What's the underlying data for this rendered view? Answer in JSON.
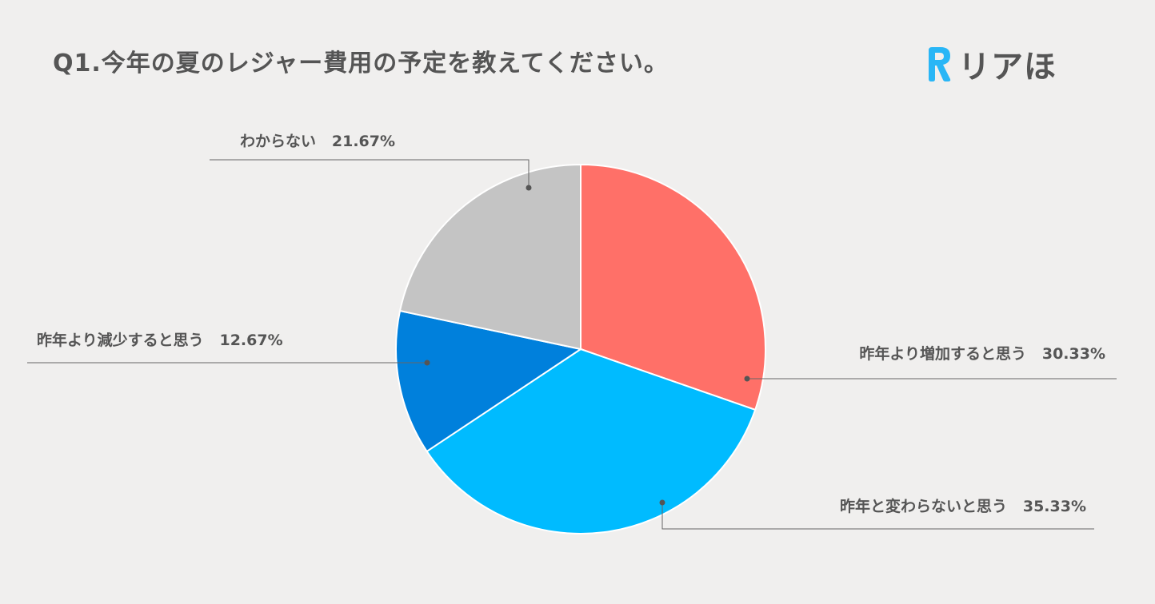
{
  "header": {
    "title": "Q1.今年の夏のレジャー費用の予定を教えてください。",
    "logo_text": "リアほ",
    "logo_mark_letter": "R",
    "logo_mark_color": "#29b6f6"
  },
  "chart_data": {
    "type": "pie",
    "title": "Q1.今年の夏のレジャー費用の予定を教えてください。",
    "slices": [
      {
        "label": "昨年より増加すると思う",
        "value": 30.33,
        "display": "30.33%",
        "color": "#ff7068"
      },
      {
        "label": "昨年と変わらないと思う",
        "value": 35.33,
        "display": "35.33%",
        "color": "#00bbff"
      },
      {
        "label": "昨年より減少すると思う",
        "value": 12.67,
        "display": "12.67%",
        "color": "#0080dc"
      },
      {
        "label": "わからない",
        "value": 21.67,
        "display": "21.67%",
        "color": "#c4c4c4"
      }
    ],
    "start_angle_deg": 0,
    "direction": "clockwise",
    "legend": "none",
    "leader_color": "#666666"
  }
}
